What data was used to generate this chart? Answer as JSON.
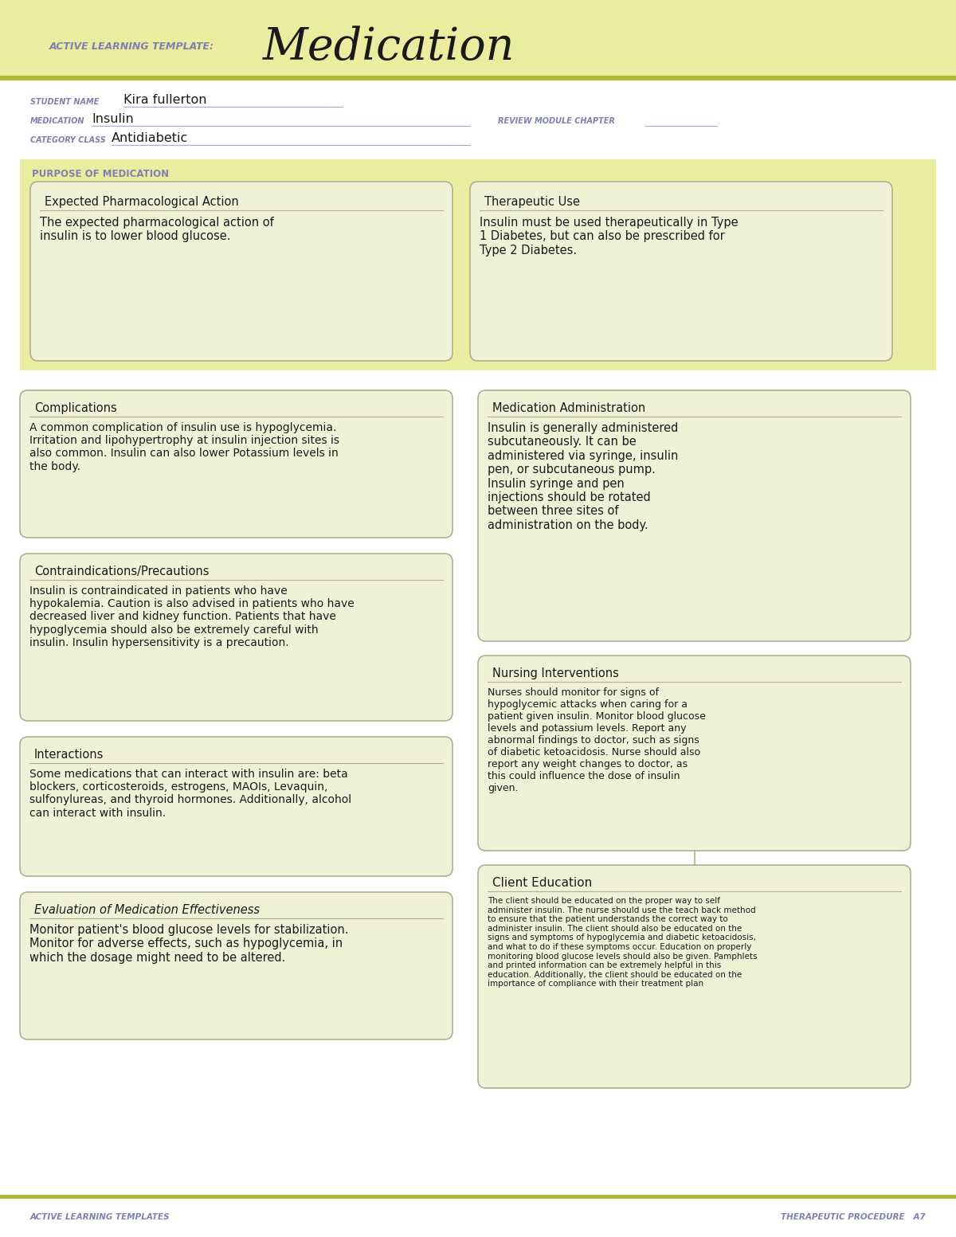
{
  "bg_header": "#eaeda0",
  "bg_white": "#ffffff",
  "bg_section": "#e8eda0",
  "bg_box": "#f0f2d8",
  "border_color": "#b0b090",
  "olive_line": "#b0b832",
  "purple_label": "#8080b0",
  "dark_text": "#1a1a1a",
  "header_template_label": "ACTIVE LEARNING TEMPLATE:",
  "header_title": "Medication",
  "student_name_label": "STUDENT NAME",
  "student_name_value": "Kira fullerton",
  "medication_label": "MEDICATION",
  "medication_value": "Insulin",
  "review_label": "REVIEW MODULE CHAPTER",
  "category_label": "CATEGORY CLASS",
  "category_value": "Antidiabetic",
  "purpose_label": "PURPOSE OF MEDICATION",
  "box1_title": "Expected Pharmacological Action",
  "box1_body": "The expected pharmacological action of\ninsulin is to lower blood glucose.",
  "box2_title": "Therapeutic Use",
  "box2_body": "Insulin must be used therapeutically in Type\n1 Diabetes, but can also be prescribed for\nType 2 Diabetes.",
  "box3_title": "Complications",
  "box3_body": "A common complication of insulin use is hypoglycemia.\nIrritation and lipohypertrophy at insulin injection sites is\nalso common. Insulin can also lower Potassium levels in\nthe body.",
  "box4_title": "Medication Administration",
  "box4_body": "Insulin is generally administered\nsubcutaneously. It can be\nadministered via syringe, insulin\npen, or subcutaneous pump.\nInsulin syringe and pen\ninjections should be rotated\nbetween three sites of\nadministration on the body.",
  "box5_title": "Contraindications/Precautions",
  "box5_body": "Insulin is contraindicated in patients who have\nhypokalemia. Caution is also advised in patients who have\ndecreased liver and kidney function. Patients that have\nhypoglycemia should also be extremely careful with\ninsulin. Insulin hypersensitivity is a precaution.",
  "box6_title": "Nursing Interventions",
  "box6_body": "Nurses should monitor for signs of\nhypoglycemic attacks when caring for a\npatient given insulin. Monitor blood glucose\nlevels and potassium levels. Report any\nabnormal findings to doctor, such as signs\nof diabetic ketoacidosis. Nurse should also\nreport any weight changes to doctor, as\nthis could influence the dose of insulin\ngiven.",
  "box7_title": "Interactions",
  "box7_body": "Some medications that can interact with insulin are: beta\nblockers, corticosteroids, estrogens, MAOIs, Levaquin,\nsulfonylureas, and thyroid hormones. Additionally, alcohol\ncan interact with insulin.",
  "box8_title": "Client Education",
  "box8_body": "The client should be educated on the proper way to self\nadminister insulin. The nurse should use the teach back method\nto ensure that the patient understands the correct way to\nadminister insulin. The client should also be educated on the\nsigns and symptoms of hypoglycemia and diabetic ketoacidosis,\nand what to do if these symptoms occur. Education on properly\nmonitoring blood glucose levels should also be given. Pamphlets\nand printed information can be extremely helpful in this\neducation. Additionally, the client should be educated on the\nimportance of compliance with their treatment plan",
  "box9_title": "Evaluation of Medication Effectiveness",
  "box9_body": "Monitor patient's blood glucose levels for stabilization.\nMonitor for adverse effects, such as hypoglycemia, in\nwhich the dosage might need to be altered.",
  "footer_left": "ACTIVE LEARNING TEMPLATES",
  "footer_right": "THERAPEUTIC PROCEDURE   A7"
}
